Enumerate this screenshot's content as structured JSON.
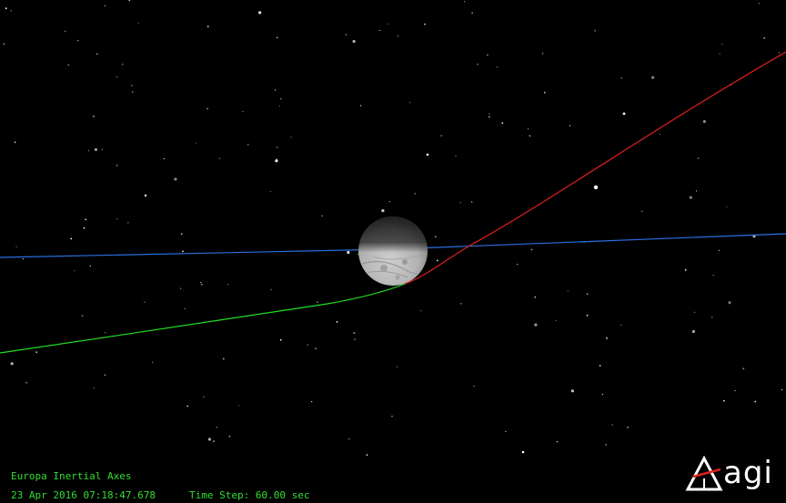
{
  "scene": {
    "central_body": "Europa",
    "background": "#000000",
    "colors": {
      "pre_approach_trajectory": "#22e022",
      "post_flyby_trajectory": "#e02020",
      "reference_line": "#2a6fe0",
      "text": "#33dd33"
    }
  },
  "hud": {
    "frame": "Europa Inertial Axes",
    "epoch": "23 Apr 2016 07:18:47.678",
    "time_step": "Time Step: 60.00 sec"
  },
  "logo": {
    "text": "agi",
    "icon": "agi-logo-icon"
  }
}
